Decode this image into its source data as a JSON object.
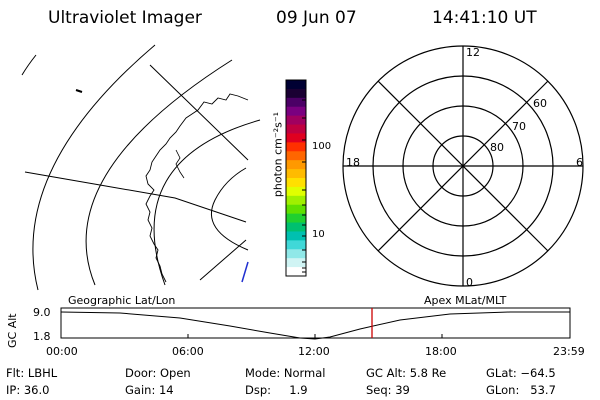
{
  "header": {
    "title": "Ultraviolet Imager",
    "date": "09 Jun 07",
    "time": "14:41:10 UT"
  },
  "colorbar": {
    "unit_label": "photon cm⁻²s⁻¹",
    "tick_100": "100",
    "tick_10": "10",
    "colors": [
      "#000033",
      "#1a0033",
      "#4b0066",
      "#7a0080",
      "#a00060",
      "#c00040",
      "#e00020",
      "#ff3000",
      "#ff6600",
      "#ff9900",
      "#ffbb00",
      "#ffe000",
      "#e0ff00",
      "#a0f000",
      "#60e000",
      "#20d030",
      "#00c070",
      "#00c0b0",
      "#40d8d8",
      "#90e8e8",
      "#d0f4f4",
      "#ffffff"
    ]
  },
  "polar_plot": {
    "label_12": "12",
    "label_18": "18",
    "label_6": "6",
    "label_0": "0",
    "label_60": "60",
    "label_70": "70",
    "label_80": "80"
  },
  "orbit": {
    "left_label": "Geographic Lat/Lon",
    "right_label": "Apex MLat/MLT",
    "axis_label": "GC Alt",
    "y_top": "9.0",
    "y_bottom": "1.8",
    "x_ticks": [
      "00:00",
      "06:00",
      "12:00",
      "18:00",
      "23:59"
    ],
    "current_marker_color": "#cc0000"
  },
  "status": {
    "flt": "Flt: LBHL",
    "ip": "IP: 36.0",
    "door": "Door: Open",
    "gain": "Gain: 14",
    "mode": "Mode: Normal",
    "dsp": "Dsp:     1.9",
    "gcalt": "GC Alt: 5.8 Re",
    "seq": "Seq: 39",
    "glat": "GLat: −64.5",
    "glon": "GLon:   53.7"
  }
}
